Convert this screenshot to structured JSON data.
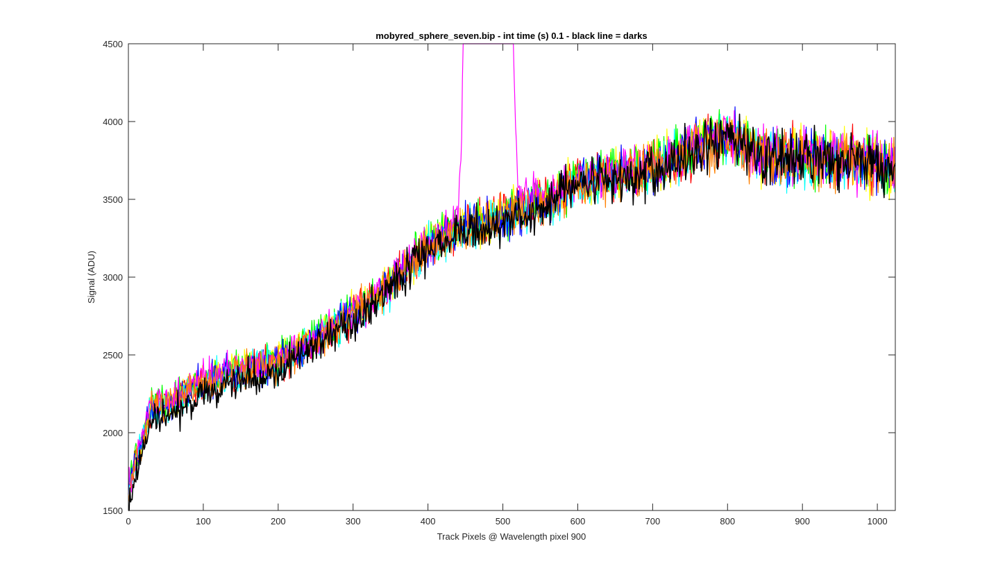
{
  "chart_data": {
    "type": "line",
    "title": "mobyred_sphere_seven.bip - int time (s) 0.1 - black line = darks",
    "xlabel": "Track Pixels @ Wavelength pixel 900",
    "ylabel": "Signal (ADU)",
    "xlim": [
      0,
      1024
    ],
    "ylim": [
      1500,
      4500
    ],
    "xticks": [
      0,
      100,
      200,
      300,
      400,
      500,
      600,
      700,
      800,
      900,
      1000
    ],
    "yticks": [
      1500,
      2000,
      2500,
      3000,
      3500,
      4000,
      4500
    ],
    "grid": false,
    "legend": "none",
    "series": [
      {
        "color": "#FF0000",
        "x": [
          0,
          30,
          60,
          100,
          150,
          200,
          250,
          300,
          350,
          400,
          440,
          520,
          560,
          600,
          650,
          700,
          760,
          800,
          850,
          900,
          950,
          1024
        ],
        "values": [
          1650,
          2150,
          2200,
          2330,
          2400,
          2450,
          2600,
          2750,
          2950,
          3200,
          3300,
          3420,
          3480,
          3620,
          3650,
          3700,
          3840,
          3900,
          3780,
          3760,
          3760,
          3700
        ]
      },
      {
        "color": "#FFFF00",
        "x": [
          0,
          30,
          60,
          100,
          150,
          200,
          250,
          300,
          350,
          400,
          440,
          520,
          560,
          600,
          650,
          700,
          760,
          800,
          850,
          900,
          950,
          1024
        ],
        "values": [
          1660,
          2160,
          2210,
          2340,
          2410,
          2460,
          2610,
          2760,
          2960,
          3210,
          3310,
          3430,
          3490,
          3630,
          3660,
          3710,
          3850,
          3910,
          3790,
          3770,
          3770,
          3710
        ]
      },
      {
        "color": "#00FF00",
        "x": [
          0,
          30,
          60,
          100,
          150,
          200,
          250,
          300,
          350,
          400,
          440,
          520,
          560,
          600,
          650,
          700,
          760,
          800,
          850,
          900,
          950,
          1024
        ],
        "values": [
          1670,
          2170,
          2220,
          2350,
          2420,
          2470,
          2620,
          2770,
          2970,
          3220,
          3320,
          3440,
          3500,
          3640,
          3670,
          3720,
          3860,
          3920,
          3800,
          3780,
          3780,
          3720
        ]
      },
      {
        "color": "#00FFFF",
        "x": [
          0,
          30,
          60,
          100,
          150,
          200,
          250,
          300,
          350,
          400,
          440,
          520,
          560,
          600,
          650,
          700,
          760,
          800,
          850,
          900,
          950,
          1024
        ],
        "values": [
          1640,
          2140,
          2190,
          2320,
          2390,
          2440,
          2590,
          2740,
          2940,
          3190,
          3290,
          3410,
          3470,
          3610,
          3640,
          3690,
          3830,
          3890,
          3770,
          3750,
          3750,
          3690
        ]
      },
      {
        "color": "#0000FF",
        "x": [
          0,
          30,
          60,
          100,
          150,
          200,
          250,
          300,
          350,
          400,
          440,
          520,
          560,
          600,
          650,
          700,
          760,
          800,
          850,
          900,
          950,
          1024
        ],
        "values": [
          1655,
          2155,
          2205,
          2335,
          2405,
          2455,
          2605,
          2755,
          2955,
          3205,
          3305,
          3425,
          3485,
          3625,
          3655,
          3705,
          3845,
          3905,
          3785,
          3765,
          3765,
          3705
        ]
      },
      {
        "color": "#FF00FF",
        "x": [
          0,
          30,
          60,
          100,
          150,
          200,
          250,
          300,
          350,
          400,
          440,
          445,
          447,
          449,
          514,
          516,
          520,
          560,
          600,
          650,
          700,
          760,
          800,
          850,
          900,
          950,
          1024
        ],
        "values": [
          1665,
          2165,
          2215,
          2345,
          2415,
          2465,
          2615,
          2765,
          2965,
          3215,
          3350,
          3900,
          4500,
          4500,
          4500,
          4100,
          3550,
          3495,
          3635,
          3665,
          3715,
          3855,
          3915,
          3795,
          3775,
          3775,
          3715
        ]
      },
      {
        "color": "#FF8000",
        "x": [
          0,
          30,
          60,
          100,
          150,
          200,
          250,
          300,
          350,
          400,
          440,
          520,
          560,
          600,
          650,
          700,
          760,
          800,
          850,
          900,
          950,
          1024
        ],
        "values": [
          1645,
          2145,
          2195,
          2325,
          2395,
          2445,
          2595,
          2745,
          2945,
          3195,
          3295,
          3415,
          3475,
          3615,
          3645,
          3695,
          3835,
          3895,
          3775,
          3755,
          3755,
          3695
        ]
      },
      {
        "color": "#000000",
        "x": [
          0,
          30,
          60,
          100,
          150,
          200,
          250,
          300,
          350,
          400,
          450,
          500,
          520,
          560,
          600,
          650,
          700,
          760,
          800,
          850,
          900,
          950,
          1024
        ],
        "values": [
          1550,
          2080,
          2120,
          2250,
          2330,
          2400,
          2560,
          2720,
          2920,
          3180,
          3300,
          3330,
          3400,
          3460,
          3600,
          3630,
          3690,
          3830,
          3900,
          3780,
          3760,
          3760,
          3700
        ]
      }
    ]
  }
}
